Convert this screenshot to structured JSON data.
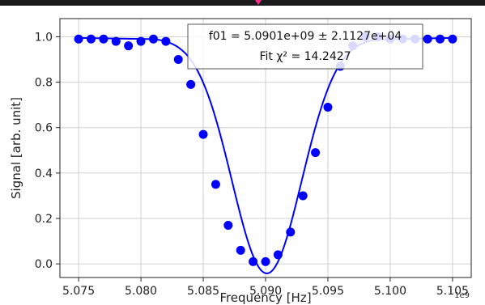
{
  "chart_data": {
    "type": "scatter",
    "xlabel": "Frequency [Hz]",
    "ylabel": "Signal [arb. unit]",
    "x_exponent_label": "1e9",
    "xlim": [
      5.0735,
      5.1065
    ],
    "ylim": [
      -0.06,
      1.08
    ],
    "x_ticks": [
      5.075,
      5.08,
      5.085,
      5.09,
      5.095,
      5.1,
      5.105
    ],
    "x_tick_labels": [
      "5.075",
      "5.080",
      "5.085",
      "5.090",
      "5.095",
      "5.100",
      "5.105"
    ],
    "y_ticks": [
      0.0,
      0.2,
      0.4,
      0.6,
      0.8,
      1.0
    ],
    "y_tick_labels": [
      "0.0",
      "0.2",
      "0.4",
      "0.6",
      "0.8",
      "1.0"
    ],
    "grid": true,
    "color": "#0000ff",
    "annotation": {
      "line1": "f01 =  5.0901e+09 ±  2.1127e+04",
      "line2": "Fit χ² =  14.2427"
    },
    "series": [
      {
        "kind": "points",
        "x": [
          5.075,
          5.076,
          5.077,
          5.078,
          5.079,
          5.08,
          5.081,
          5.082,
          5.083,
          5.084,
          5.085,
          5.086,
          5.087,
          5.088,
          5.089,
          5.09,
          5.091,
          5.092,
          5.093,
          5.094,
          5.095,
          5.096,
          5.097,
          5.098,
          5.099,
          5.1,
          5.101,
          5.102,
          5.103,
          5.104,
          5.105
        ],
        "y": [
          0.99,
          0.99,
          0.99,
          0.98,
          0.96,
          0.98,
          0.99,
          0.98,
          0.9,
          0.79,
          0.57,
          0.35,
          0.17,
          0.06,
          0.01,
          0.01,
          0.04,
          0.14,
          0.3,
          0.49,
          0.69,
          0.87,
          0.96,
          1.0,
          1.0,
          0.99,
          0.99,
          0.99,
          0.99,
          0.99,
          0.99
        ]
      },
      {
        "kind": "fit-line",
        "model": "gaussian",
        "baseline": 0.995,
        "depth": 1.037,
        "center": 5.0901,
        "sigma": 0.0028,
        "x_range": [
          5.081,
          5.099
        ]
      }
    ]
  }
}
